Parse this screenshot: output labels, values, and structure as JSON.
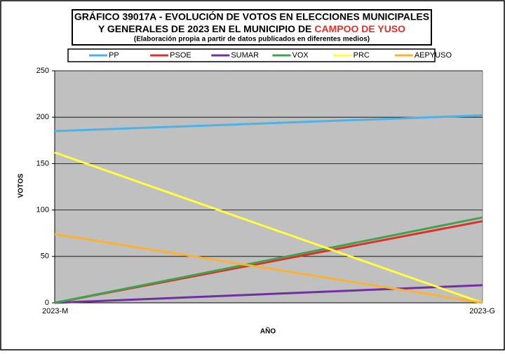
{
  "chart_data": {
    "type": "line",
    "title_lines": [
      "GRÁFICO 39017A - EVOLUCIÓN DE VOTOS EN ELECCIONES MUNICIPALES",
      "Y GENERALES DE 2023 EN EL MUNICIPIO DE"
    ],
    "title_highlight": "CAMPOO DE YUSO",
    "subtitle": "(Elaboración propia a partir de datos publicados en diferentes medios)",
    "x_label": "AÑO",
    "y_label": "VOTOS",
    "categories": [
      "2023-M",
      "2023-G"
    ],
    "series": [
      {
        "name": "PP",
        "color": "#4db3e6",
        "values": [
          185,
          202
        ]
      },
      {
        "name": "PSOE",
        "color": "#e0302a",
        "values": [
          0,
          88
        ]
      },
      {
        "name": "SUMAR",
        "color": "#7030a0",
        "values": [
          0,
          19
        ]
      },
      {
        "name": "VOX",
        "color": "#3fa34d",
        "values": [
          0,
          92
        ]
      },
      {
        "name": "PRC",
        "color": "#ffff40",
        "values": [
          162,
          0
        ]
      },
      {
        "name": "AEPYUSO",
        "color": "#f9b233",
        "values": [
          74,
          0
        ]
      }
    ],
    "ylim": [
      0,
      250
    ],
    "yticks": [
      0,
      50,
      100,
      150,
      200,
      250
    ],
    "grid": true,
    "plot_color": "#c0c0c0"
  }
}
